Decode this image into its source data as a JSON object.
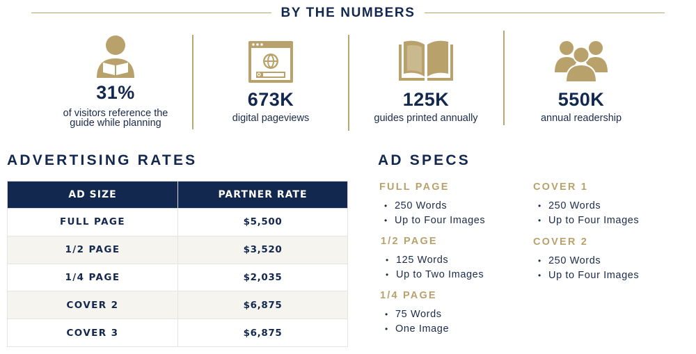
{
  "header": {
    "title": "BY THE NUMBERS"
  },
  "colors": {
    "navy": "#13284f",
    "gold": "#b8a16a",
    "stripe": "#f6f4ee"
  },
  "stats": [
    {
      "icon": "reader-icon",
      "number": "31%",
      "caption_line1": "of visitors reference the",
      "caption_line2": "guide while planning"
    },
    {
      "icon": "browser-globe-icon",
      "number": "673K",
      "caption_line1": "digital pageviews",
      "caption_line2": ""
    },
    {
      "icon": "open-book-icon",
      "number": "125K",
      "caption_line1": "guides printed annually",
      "caption_line2": ""
    },
    {
      "icon": "people-group-icon",
      "number": "550K",
      "caption_line1": "annual readership",
      "caption_line2": ""
    }
  ],
  "rates": {
    "title": "ADVERTISING RATES",
    "headers": [
      "AD SIZE",
      "PARTNER RATE"
    ],
    "rows": [
      {
        "size": "FULL PAGE",
        "rate": "$5,500"
      },
      {
        "size": "1/2 PAGE",
        "rate": "$3,520"
      },
      {
        "size": "1/4 PAGE",
        "rate": "$2,035"
      },
      {
        "size": "COVER 2",
        "rate": "$6,875"
      },
      {
        "size": "COVER 3",
        "rate": "$6,875"
      }
    ]
  },
  "specs": {
    "title": "AD SPECS",
    "groups": [
      {
        "heading": "FULL PAGE",
        "items": [
          "250 Words",
          "Up to Four Images"
        ]
      },
      {
        "heading": "1/2 PAGE",
        "items": [
          "125 Words",
          "Up to Two Images"
        ]
      },
      {
        "heading": "1/4 PAGE",
        "items": [
          "75 Words",
          "One Image"
        ]
      },
      {
        "heading": "COVER 1",
        "items": [
          "250 Words",
          "Up to Four Images"
        ]
      },
      {
        "heading": "COVER 2",
        "items": [
          "250 Words",
          "Up to Four Images"
        ]
      }
    ]
  }
}
